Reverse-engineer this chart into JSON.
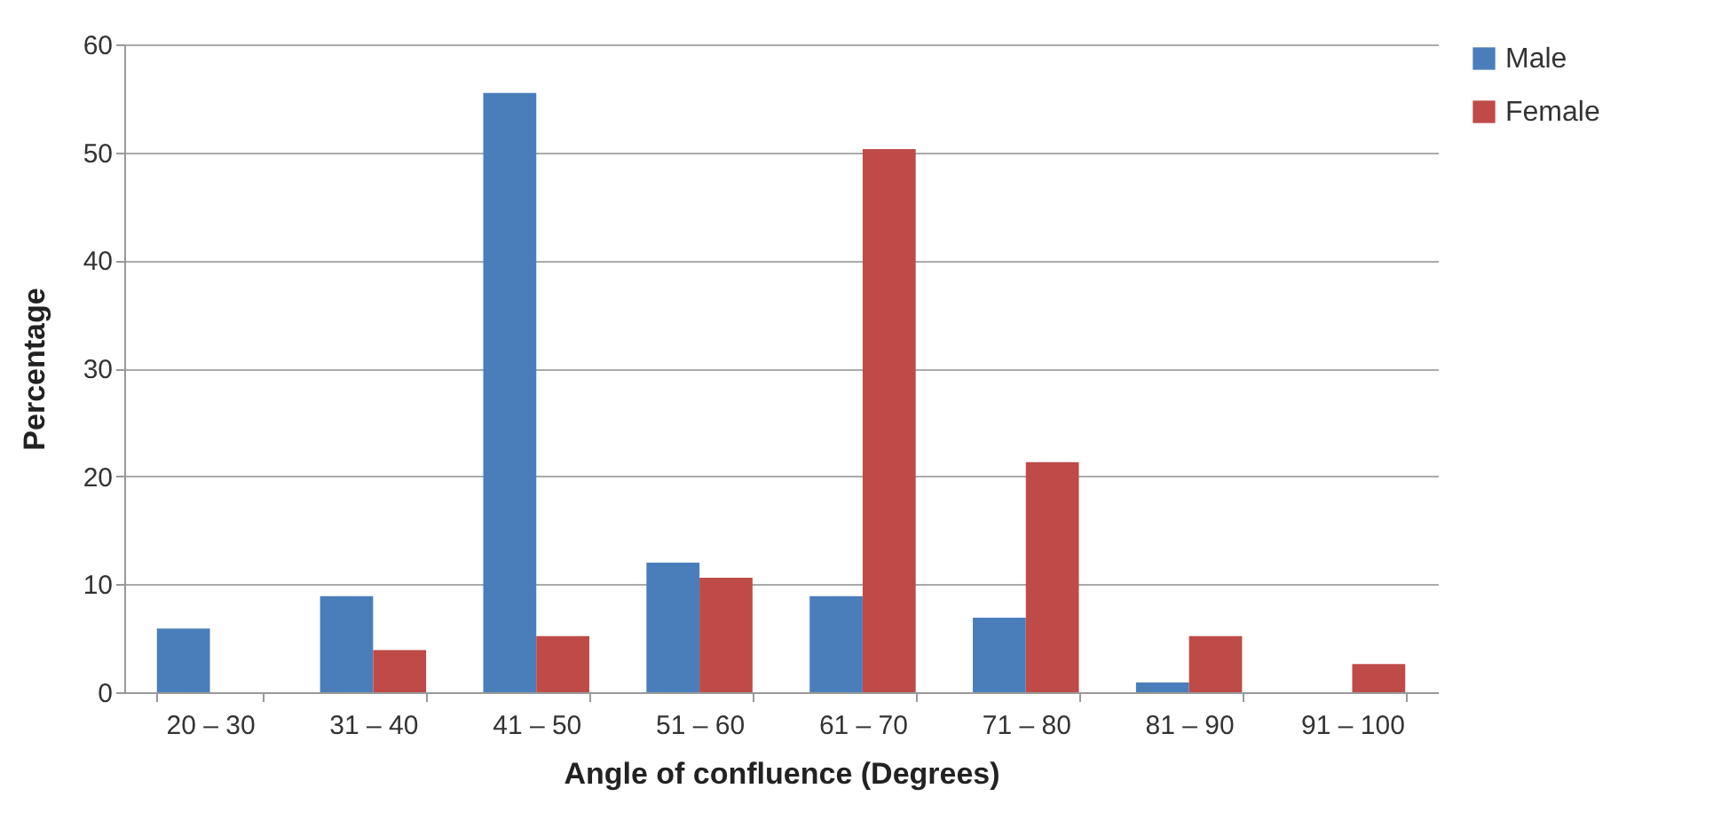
{
  "chart_data": {
    "type": "bar",
    "xlabel": "Angle of confluence (Degrees)",
    "ylabel": "Percentage",
    "categories": [
      "20 – 30",
      "31 – 40",
      "41 – 50",
      "51 – 60",
      "61 – 70",
      "71 – 80",
      "81 – 90",
      "91 – 100"
    ],
    "series": [
      {
        "name": "Male",
        "color": "#4a7ebb",
        "values": [
          5.9,
          8.9,
          55.5,
          12,
          8.9,
          6.9,
          0.9,
          0
        ]
      },
      {
        "name": "Female",
        "color": "#be4b48",
        "values": [
          0,
          3.9,
          5.2,
          10.6,
          50.3,
          21.3,
          5.2,
          2.6
        ]
      }
    ],
    "ylim": [
      0,
      60
    ],
    "yticks": [
      0,
      10,
      20,
      30,
      40,
      50,
      60
    ],
    "grid": "y",
    "legend": "right"
  }
}
